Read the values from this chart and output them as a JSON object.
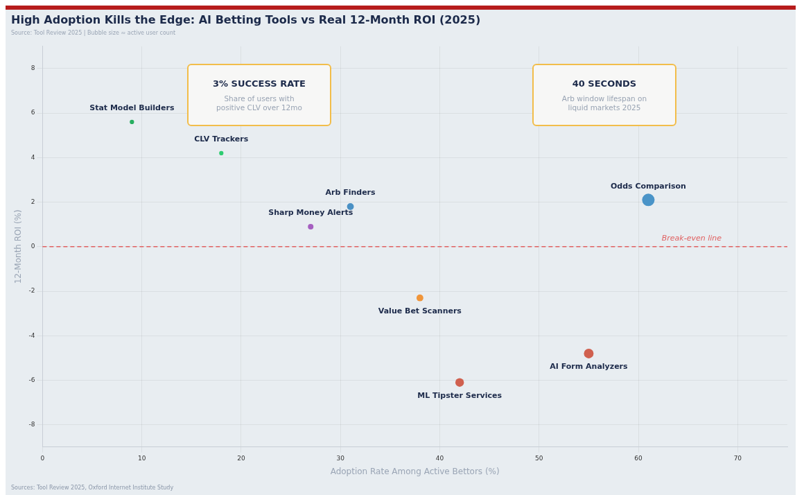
{
  "chart_data": {
    "type": "bubble",
    "title": "High Adoption Kills the Edge: AI Betting Tools vs Real 12-Month ROI (2025)",
    "subtitle": "Source: Tool Review 2025 | Bubble size ≈ active user count",
    "xlabel": "Adoption Rate Among Active Bettors (%)",
    "ylabel": "12-Month ROI (%)",
    "x": [
      9,
      18,
      31,
      27,
      61,
      38,
      55,
      42
    ],
    "values": [
      5.6,
      4.2,
      1.8,
      0.9,
      2.1,
      -2.3,
      -4.8,
      -6.1
    ],
    "sizes": [
      0.12,
      0.12,
      0.3,
      0.2,
      1,
      0.3,
      0.6,
      0.48
    ],
    "colors": [
      "#27ae60",
      "#2ecc71",
      "#4a90c4",
      "#a55fc0",
      "#4a94c8",
      "#f0953a",
      "#d0604f",
      "#d0604f"
    ],
    "xlim": [
      0,
      75
    ],
    "xticks": [
      0,
      10,
      20,
      30,
      40,
      50,
      60,
      70
    ],
    "ylim": [
      -9,
      9
    ],
    "yticks": [
      -8,
      -6,
      -4,
      -2,
      0,
      2,
      4,
      6,
      8
    ],
    "grid": true,
    "ref_lines": [
      {
        "axis": "y",
        "value": 0,
        "label": "Break-even line",
        "color": "#e06060",
        "line_style": "dashed"
      }
    ],
    "annotations": [
      {
        "text": "Stat Model Builders",
        "x": 9,
        "y": 5.6
      },
      {
        "text": "CLV Trackers",
        "x": 18,
        "y": 4.2
      },
      {
        "text": "Arb Finders",
        "x": 31,
        "y": 1.8
      },
      {
        "text": "Sharp Money Alerts",
        "x": 27,
        "y": 0.9
      },
      {
        "text": "Odds Comparison",
        "x": 61,
        "y": 2.1
      },
      {
        "text": "Value Bet Scanners",
        "x": 38,
        "y": -2.3
      },
      {
        "text": "AI Form Analyzers",
        "x": 55,
        "y": -4.8
      },
      {
        "text": "ML Tipster Services",
        "x": 42,
        "y": -6.1
      },
      "3% SUCCESS RATE",
      "Share of users with positive CLV over 12mo",
      "40 SECONDS",
      "Arb window lifespan on liquid markets 2025",
      "Sources: Tool Review 2025, Oxford Internet Institute Study"
    ]
  }
}
